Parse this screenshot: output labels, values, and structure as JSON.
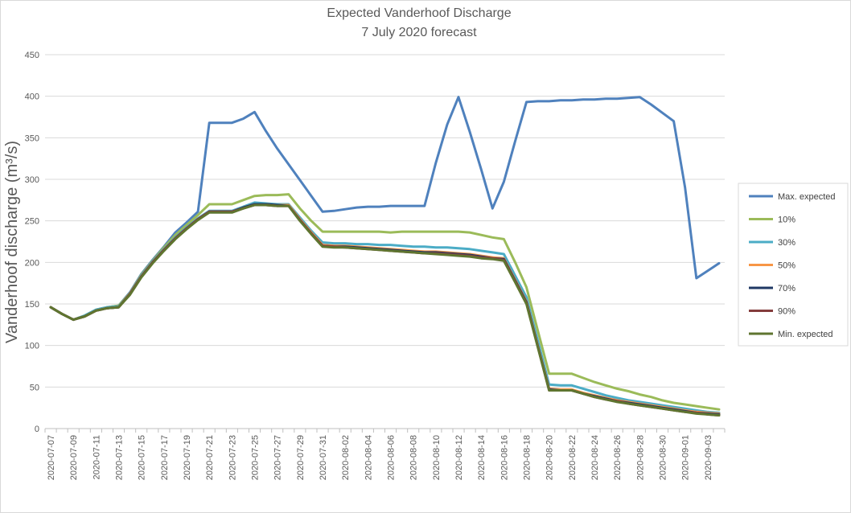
{
  "chart_data": {
    "type": "line",
    "title": "Expected Vanderhoof  Discharge",
    "subtitle": "7 July 2020 forecast",
    "xlabel": "",
    "ylabel": "Vanderhoof discharge (m³/s)",
    "ylim": [
      0,
      450
    ],
    "yticks": [
      0,
      50,
      100,
      150,
      200,
      250,
      300,
      350,
      400,
      450
    ],
    "ytick_labels": [
      "0",
      "50",
      "100",
      "150",
      "200",
      "250",
      "300",
      "350",
      "400",
      "450"
    ],
    "grid": "horizontal",
    "legend_position": "right",
    "xtick_labels": [
      "2020-07-07",
      "2020-07-09",
      "2020-07-11",
      "2020-07-13",
      "2020-07-15",
      "2020-07-17",
      "2020-07-19",
      "2020-07-21",
      "2020-07-23",
      "2020-07-25",
      "2020-07-27",
      "2020-07-29",
      "2020-07-31",
      "2020-08-02",
      "2020-08-04",
      "2020-08-06",
      "2020-08-08",
      "2020-08-10",
      "2020-08-12",
      "2020-08-14",
      "2020-08-16",
      "2020-08-18",
      "2020-08-20",
      "2020-08-22",
      "2020-08-24",
      "2020-08-26",
      "2020-08-28",
      "2020-08-30",
      "2020-09-01",
      "2020-09-03"
    ],
    "x": [
      "2020-07-07",
      "2020-07-08",
      "2020-07-09",
      "2020-07-10",
      "2020-07-11",
      "2020-07-12",
      "2020-07-13",
      "2020-07-14",
      "2020-07-15",
      "2020-07-16",
      "2020-07-17",
      "2020-07-18",
      "2020-07-19",
      "2020-07-20",
      "2020-07-21",
      "2020-07-22",
      "2020-07-23",
      "2020-07-24",
      "2020-07-25",
      "2020-07-26",
      "2020-07-27",
      "2020-07-28",
      "2020-07-29",
      "2020-07-30",
      "2020-07-31",
      "2020-08-01",
      "2020-08-02",
      "2020-08-03",
      "2020-08-04",
      "2020-08-05",
      "2020-08-06",
      "2020-08-07",
      "2020-08-08",
      "2020-08-09",
      "2020-08-10",
      "2020-08-11",
      "2020-08-12",
      "2020-08-13",
      "2020-08-14",
      "2020-08-15",
      "2020-08-16",
      "2020-08-17",
      "2020-08-18",
      "2020-08-19",
      "2020-08-20",
      "2020-08-21",
      "2020-08-22",
      "2020-08-23",
      "2020-08-24",
      "2020-08-25",
      "2020-08-26",
      "2020-08-27",
      "2020-08-28",
      "2020-08-29",
      "2020-08-30",
      "2020-08-31",
      "2020-09-01",
      "2020-09-02",
      "2020-09-03",
      "2020-09-04"
    ],
    "series": [
      {
        "name": "Max. expected",
        "color": "#4f81bd",
        "values": [
          146,
          138,
          131,
          136,
          143,
          146,
          148,
          164,
          186,
          203,
          219,
          236,
          248,
          261,
          368,
          368,
          368,
          373,
          381,
          358,
          337,
          318,
          299,
          280,
          261,
          262,
          264,
          266,
          267,
          267,
          268,
          268,
          268,
          268,
          320,
          366,
          399,
          357,
          312,
          265,
          297,
          346,
          393,
          394,
          394,
          395,
          395,
          396,
          396,
          397,
          397,
          398,
          399,
          390,
          380,
          370,
          290,
          181,
          190,
          199
        ]
      },
      {
        "name": "10%",
        "color": "#9bbb59",
        "values": [
          146,
          138,
          131,
          136,
          143,
          146,
          148,
          163,
          185,
          202,
          218,
          233,
          245,
          257,
          270,
          270,
          270,
          275,
          280,
          281,
          281,
          282,
          265,
          250,
          237,
          237,
          237,
          237,
          237,
          237,
          236,
          237,
          237,
          237,
          237,
          237,
          237,
          236,
          233,
          230,
          228,
          200,
          170,
          118,
          66,
          66,
          66,
          61,
          56,
          52,
          48,
          45,
          41,
          38,
          34,
          31,
          29,
          27,
          25,
          23
        ]
      },
      {
        "name": "30%",
        "color": "#4bacc6",
        "values": [
          146,
          138,
          131,
          136,
          143,
          146,
          147,
          162,
          184,
          201,
          216,
          230,
          242,
          253,
          262,
          262,
          262,
          267,
          272,
          271,
          270,
          270,
          254,
          238,
          224,
          223,
          223,
          222,
          222,
          221,
          221,
          220,
          219,
          219,
          218,
          218,
          217,
          216,
          214,
          212,
          210,
          184,
          158,
          106,
          53,
          52,
          52,
          48,
          44,
          40,
          37,
          34,
          32,
          30,
          28,
          26,
          24,
          22,
          20,
          19
        ]
      },
      {
        "name": "50%",
        "color": "#f79646",
        "values": [
          146,
          138,
          131,
          135,
          142,
          145,
          146,
          162,
          183,
          200,
          215,
          229,
          241,
          252,
          261,
          261,
          261,
          266,
          270,
          270,
          269,
          269,
          252,
          236,
          221,
          220,
          220,
          219,
          218,
          217,
          216,
          215,
          214,
          213,
          213,
          212,
          211,
          210,
          208,
          206,
          205,
          179,
          153,
          100,
          48,
          47,
          47,
          43,
          40,
          37,
          34,
          32,
          30,
          28,
          26,
          24,
          22,
          20,
          19,
          18
        ]
      },
      {
        "name": "70%",
        "color": "#1f3864",
        "values": [
          146,
          138,
          131,
          135,
          142,
          145,
          146,
          162,
          183,
          200,
          215,
          229,
          241,
          252,
          261,
          261,
          261,
          266,
          270,
          270,
          269,
          268,
          251,
          235,
          220,
          219,
          219,
          218,
          217,
          216,
          215,
          214,
          213,
          212,
          212,
          211,
          210,
          209,
          207,
          205,
          204,
          178,
          152,
          99,
          47,
          46,
          46,
          42,
          39,
          36,
          33,
          31,
          29,
          27,
          25,
          23,
          21,
          19,
          18,
          17
        ]
      },
      {
        "name": "90%",
        "color": "#843c3c",
        "values": [
          146,
          138,
          131,
          135,
          142,
          145,
          146,
          162,
          183,
          200,
          215,
          229,
          241,
          252,
          261,
          261,
          261,
          265,
          269,
          269,
          268,
          268,
          251,
          235,
          220,
          219,
          218,
          217,
          216,
          215,
          214,
          213,
          212,
          211,
          211,
          210,
          209,
          208,
          206,
          205,
          203,
          177,
          151,
          99,
          46,
          46,
          46,
          42,
          38,
          35,
          33,
          30,
          28,
          26,
          24,
          22,
          20,
          19,
          17,
          16
        ]
      },
      {
        "name": "Min. expected",
        "color": "#5f7530",
        "values": [
          146,
          138,
          131,
          135,
          142,
          145,
          146,
          161,
          182,
          199,
          214,
          228,
          240,
          251,
          260,
          260,
          260,
          265,
          269,
          269,
          268,
          268,
          250,
          234,
          219,
          218,
          218,
          217,
          216,
          215,
          214,
          213,
          212,
          211,
          210,
          209,
          208,
          207,
          205,
          204,
          202,
          176,
          150,
          98,
          46,
          46,
          46,
          42,
          38,
          35,
          32,
          30,
          28,
          26,
          24,
          22,
          20,
          18,
          17,
          16
        ]
      }
    ]
  }
}
